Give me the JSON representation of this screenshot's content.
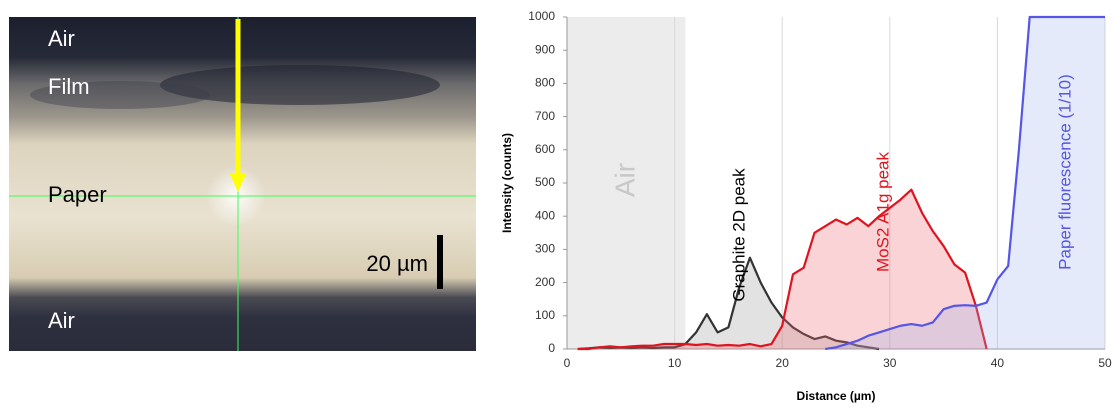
{
  "image": {
    "labels": [
      "Air",
      "Film",
      "Paper",
      "Air"
    ],
    "scale_bar": "20 µm"
  },
  "chart_data": {
    "type": "line",
    "x_label": "Distance (µm)",
    "y_label": "Intensity (counts)",
    "shaded_region": {
      "label": "Air",
      "range": [
        0,
        11
      ],
      "color": "#ececec"
    },
    "x": [
      1,
      2,
      3,
      4,
      5,
      6,
      7,
      8,
      9,
      10,
      11,
      12,
      13,
      14,
      15,
      16,
      17,
      18,
      19,
      20,
      21,
      22,
      23,
      24,
      25,
      26,
      27,
      28,
      29,
      30,
      31,
      32,
      33,
      34,
      35,
      36,
      37,
      38,
      39,
      40,
      41,
      42,
      43,
      44,
      45,
      46,
      47,
      48,
      49,
      50
    ],
    "series": [
      {
        "name": "Graphite 2D peak",
        "color": "#333333",
        "fill": "rgba(160,160,160,0.3)",
        "values": [
          0,
          2,
          5,
          3,
          5,
          3,
          5,
          3,
          5,
          5,
          15,
          50,
          105,
          50,
          65,
          185,
          275,
          200,
          140,
          95,
          65,
          45,
          30,
          38,
          25,
          20,
          10,
          5,
          0,
          null,
          null,
          null,
          null,
          null,
          null,
          null,
          null,
          null,
          null,
          null,
          null,
          null,
          null,
          null,
          null,
          null,
          null,
          null,
          null,
          null
        ]
      },
      {
        "name": "MoS2 A1g peak",
        "color": "#e0141e",
        "fill": "rgba(240,110,120,0.3)",
        "values": [
          0,
          0,
          5,
          8,
          5,
          8,
          10,
          10,
          15,
          15,
          15,
          12,
          15,
          10,
          12,
          10,
          15,
          8,
          15,
          70,
          225,
          245,
          350,
          370,
          390,
          375,
          395,
          370,
          400,
          425,
          450,
          480,
          410,
          355,
          310,
          255,
          230,
          130,
          0,
          null,
          null,
          null,
          null,
          null,
          null,
          null,
          null,
          null,
          null,
          null
        ]
      },
      {
        "name": "Paper fluorescence (1/10)",
        "color": "#5555e6",
        "fill": "rgba(150,170,240,0.25)",
        "values": [
          null,
          null,
          null,
          null,
          null,
          null,
          null,
          null,
          null,
          null,
          null,
          null,
          null,
          null,
          null,
          null,
          null,
          null,
          null,
          null,
          null,
          null,
          null,
          0,
          5,
          15,
          25,
          40,
          50,
          60,
          70,
          75,
          70,
          80,
          120,
          130,
          132,
          130,
          140,
          210,
          250,
          600,
          1000,
          1000,
          1000,
          1000,
          1000,
          1000,
          1000,
          1000
        ]
      }
    ],
    "xlim": [
      0,
      50
    ],
    "xticks": [
      0,
      10,
      20,
      30,
      40,
      50
    ],
    "ylim": [
      0,
      1000
    ],
    "yticks": [
      0,
      100,
      200,
      300,
      400,
      500,
      600,
      700,
      800,
      900,
      1000
    ],
    "grid": "x"
  }
}
